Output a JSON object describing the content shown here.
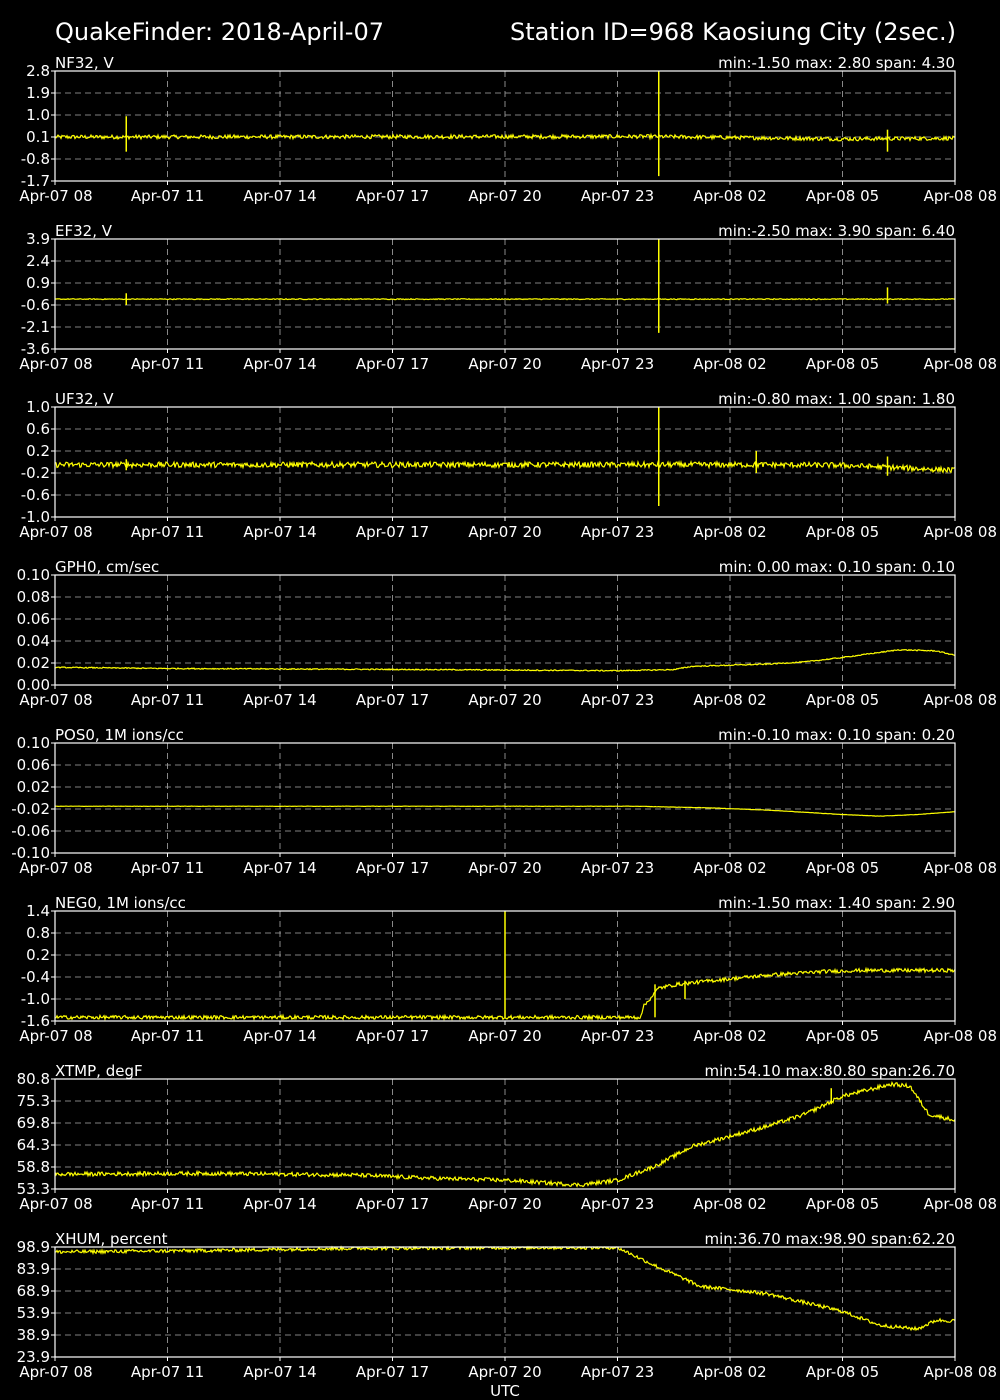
{
  "header": {
    "title": "QuakeFinder: 2018-April-07",
    "station": "Station ID=968  Kaosiung City (2sec.)"
  },
  "x_axis_label": "UTC",
  "colors": {
    "background": "#000000",
    "trace": "#ffff00",
    "frame": "#ffffff",
    "grid": "#aaaaaa"
  },
  "chart_data": [
    {
      "type": "line",
      "title": "NF32, V",
      "stats": "min:-1.50 max: 2.80 span: 4.30",
      "yticks": [
        "2.8",
        "1.9",
        "1.0",
        "0.1",
        "-0.8",
        "-1.7"
      ],
      "ylim": [
        -1.7,
        2.8
      ],
      "xticks": [
        "Apr-07 08",
        "Apr-07 11",
        "Apr-07 14",
        "Apr-07 17",
        "Apr-07 20",
        "Apr-07 23",
        "Apr-08 02",
        "Apr-08 05",
        "Apr-08 08"
      ],
      "xlim_hours": [
        0,
        24
      ],
      "grid": true,
      "series": [
        {
          "baseline": [
            [
              0,
              0.1
            ],
            [
              16,
              0.12
            ],
            [
              17,
              0.1
            ],
            [
              19.5,
              0.05
            ],
            [
              21,
              0.02
            ],
            [
              24,
              0.05
            ]
          ],
          "noise": 0.08,
          "spikes": [
            [
              1.9,
              -0.5,
              0.95
            ],
            [
              16.1,
              -1.5,
              2.8
            ],
            [
              22.2,
              -0.5,
              0.4
            ]
          ]
        }
      ]
    },
    {
      "type": "line",
      "title": "EF32, V",
      "stats": "min:-2.50 max: 3.90 span: 6.40",
      "yticks": [
        "3.9",
        "2.4",
        "0.9",
        "-0.6",
        "-2.1",
        "-3.6"
      ],
      "ylim": [
        -3.6,
        3.9
      ],
      "xticks": [
        "Apr-07 08",
        "Apr-07 11",
        "Apr-07 14",
        "Apr-07 17",
        "Apr-07 20",
        "Apr-07 23",
        "Apr-08 02",
        "Apr-08 05",
        "Apr-08 08"
      ],
      "xlim_hours": [
        0,
        24
      ],
      "grid": true,
      "series": [
        {
          "baseline": [
            [
              0,
              -0.2
            ],
            [
              24,
              -0.2
            ]
          ],
          "noise": 0.03,
          "spikes": [
            [
              1.9,
              -0.6,
              0.2
            ],
            [
              16.1,
              -2.5,
              3.9
            ],
            [
              22.2,
              -0.5,
              0.6
            ]
          ]
        }
      ]
    },
    {
      "type": "line",
      "title": "UF32, V",
      "stats": "min:-0.80 max: 1.00 span: 1.80",
      "yticks": [
        "1.0",
        "0.6",
        "0.2",
        "-0.2",
        "-0.6",
        "-1.0"
      ],
      "ylim": [
        -1.0,
        1.0
      ],
      "xticks": [
        "Apr-07 08",
        "Apr-07 11",
        "Apr-07 14",
        "Apr-07 17",
        "Apr-07 20",
        "Apr-07 23",
        "Apr-08 02",
        "Apr-08 05",
        "Apr-08 08"
      ],
      "xlim_hours": [
        0,
        24
      ],
      "grid": true,
      "series": [
        {
          "baseline": [
            [
              0,
              -0.05
            ],
            [
              16,
              -0.05
            ],
            [
              19,
              -0.05
            ],
            [
              21,
              -0.06
            ],
            [
              24,
              -0.15
            ]
          ],
          "noise": 0.05,
          "spikes": [
            [
              1.9,
              -0.15,
              0.05
            ],
            [
              16.1,
              -0.8,
              1.0
            ],
            [
              18.7,
              -0.2,
              0.2
            ],
            [
              22.2,
              -0.25,
              0.1
            ]
          ]
        }
      ]
    },
    {
      "type": "line",
      "title": "GPH0, cm/sec",
      "stats": "min: 0.00 max: 0.10 span: 0.10",
      "yticks": [
        "0.10",
        "0.08",
        "0.06",
        "0.04",
        "0.02",
        "0.00"
      ],
      "ylim": [
        0,
        0.1
      ],
      "xticks": [
        "Apr-07 08",
        "Apr-07 11",
        "Apr-07 14",
        "Apr-07 17",
        "Apr-07 20",
        "Apr-07 23",
        "Apr-08 02",
        "Apr-08 05",
        "Apr-08 08"
      ],
      "xlim_hours": [
        0,
        24
      ],
      "grid": true,
      "series": [
        {
          "baseline": [
            [
              0,
              0.016
            ],
            [
              3,
              0.015
            ],
            [
              10,
              0.014
            ],
            [
              15,
              0.013
            ],
            [
              16.5,
              0.014
            ],
            [
              17,
              0.017
            ],
            [
              19,
              0.019
            ],
            [
              20,
              0.021
            ],
            [
              21,
              0.025
            ],
            [
              22.5,
              0.032
            ],
            [
              23.5,
              0.031
            ],
            [
              24,
              0.027
            ]
          ],
          "noise": 0.0005,
          "spikes": []
        }
      ]
    },
    {
      "type": "line",
      "title": "POS0, 1M ions/cc",
      "stats": "min:-0.10 max: 0.10 span: 0.20",
      "yticks": [
        "0.10",
        "0.06",
        "0.02",
        "-0.02",
        "-0.06",
        "-0.10"
      ],
      "ylim": [
        -0.1,
        0.1
      ],
      "xticks": [
        "Apr-07 08",
        "Apr-07 11",
        "Apr-07 14",
        "Apr-07 17",
        "Apr-07 20",
        "Apr-07 23",
        "Apr-08 02",
        "Apr-08 05",
        "Apr-08 08"
      ],
      "xlim_hours": [
        0,
        24
      ],
      "grid": true,
      "series": [
        {
          "baseline": [
            [
              0,
              -0.015
            ],
            [
              15.5,
              -0.015
            ],
            [
              17.5,
              -0.018
            ],
            [
              19,
              -0.022
            ],
            [
              21,
              -0.03
            ],
            [
              22,
              -0.033
            ],
            [
              23,
              -0.03
            ],
            [
              24,
              -0.025
            ]
          ],
          "noise": 0.0003,
          "spikes": []
        }
      ]
    },
    {
      "type": "line",
      "title": "NEG0, 1M ions/cc",
      "stats": "min:-1.50 max: 1.40 span: 2.90",
      "yticks": [
        "1.4",
        "0.8",
        "0.2",
        "-0.4",
        "-1.0",
        "-1.6"
      ],
      "ylim": [
        -1.6,
        1.4
      ],
      "xticks": [
        "Apr-07 08",
        "Apr-07 11",
        "Apr-07 14",
        "Apr-07 17",
        "Apr-07 20",
        "Apr-07 23",
        "Apr-08 02",
        "Apr-08 05",
        "Apr-08 08"
      ],
      "xlim_hours": [
        0,
        24
      ],
      "grid": true,
      "series": [
        {
          "baseline": [
            [
              0,
              -1.5
            ],
            [
              15.6,
              -1.5
            ],
            [
              15.7,
              -1.2
            ],
            [
              16.1,
              -0.7
            ],
            [
              16.6,
              -0.6
            ],
            [
              17.5,
              -0.5
            ],
            [
              19,
              -0.35
            ],
            [
              20.5,
              -0.25
            ],
            [
              21.5,
              -0.22
            ],
            [
              24,
              -0.22
            ]
          ],
          "noise": 0.05,
          "spikes": [
            [
              12.0,
              -1.5,
              1.4
            ],
            [
              16.0,
              -1.5,
              -0.6
            ],
            [
              16.8,
              -1.0,
              -0.5
            ]
          ]
        }
      ]
    },
    {
      "type": "line",
      "title": "XTMP, degF",
      "stats": "min:54.10 max:80.80 span:26.70",
      "yticks": [
        "80.8",
        "75.3",
        "69.8",
        "64.3",
        "58.8",
        "53.3"
      ],
      "ylim": [
        53.3,
        80.8
      ],
      "xticks": [
        "Apr-07 08",
        "Apr-07 11",
        "Apr-07 14",
        "Apr-07 17",
        "Apr-07 20",
        "Apr-07 23",
        "Apr-08 02",
        "Apr-08 05",
        "Apr-08 08"
      ],
      "xlim_hours": [
        0,
        24
      ],
      "grid": true,
      "series": [
        {
          "baseline": [
            [
              0,
              57.0
            ],
            [
              4,
              57.2
            ],
            [
              8,
              56.8
            ],
            [
              10,
              56.0
            ],
            [
              12,
              55.5
            ],
            [
              14,
              54.3
            ],
            [
              15,
              55.5
            ],
            [
              16,
              59.0
            ],
            [
              17,
              64.0
            ],
            [
              18,
              66.5
            ],
            [
              19,
              69.0
            ],
            [
              20,
              72.0
            ],
            [
              21,
              76.5
            ],
            [
              22.3,
              79.5
            ],
            [
              22.8,
              79.0
            ],
            [
              23.3,
              72.0
            ],
            [
              24,
              70.5
            ]
          ],
          "noise": 0.5,
          "spikes": [
            [
              20.7,
              74.5,
              78.5
            ]
          ]
        }
      ]
    },
    {
      "type": "line",
      "title": "XHUM, percent",
      "stats": "min:36.70 max:98.90 span:62.20",
      "yticks": [
        "98.9",
        "83.9",
        "68.9",
        "53.9",
        "38.9",
        "23.9"
      ],
      "ylim": [
        23.9,
        98.9
      ],
      "xticks": [
        "Apr-07 08",
        "Apr-07 11",
        "Apr-07 14",
        "Apr-07 17",
        "Apr-07 20",
        "Apr-07 23",
        "Apr-08 02",
        "Apr-08 05",
        "Apr-08 08"
      ],
      "xlim_hours": [
        0,
        24
      ],
      "grid": true,
      "series": [
        {
          "baseline": [
            [
              0,
              95.5
            ],
            [
              4,
              96.5
            ],
            [
              8,
              98.0
            ],
            [
              12,
              98.5
            ],
            [
              15,
              98.5
            ],
            [
              16.1,
              85.0
            ],
            [
              16.8,
              77.0
            ],
            [
              17.2,
              72.0
            ],
            [
              18,
              70.0
            ],
            [
              19,
              67.0
            ],
            [
              20,
              61.0
            ],
            [
              21,
              55.0
            ],
            [
              22,
              45.5
            ],
            [
              23,
              43.0
            ],
            [
              23.5,
              49.0
            ],
            [
              24,
              48.5
            ]
          ],
          "noise": 1.2,
          "spikes": []
        }
      ]
    }
  ]
}
